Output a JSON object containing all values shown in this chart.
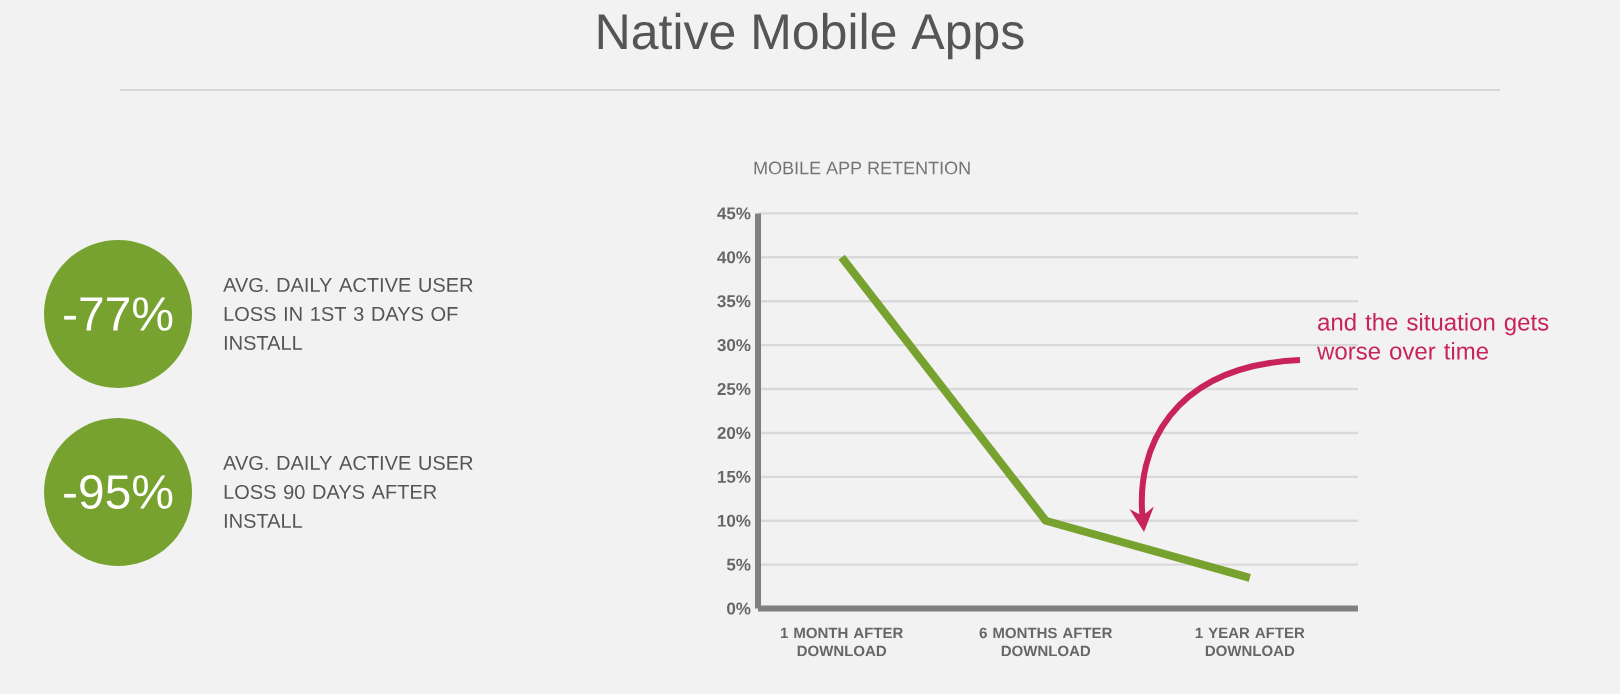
{
  "chart_data": {
    "type": "line",
    "title": "Native Mobile Apps",
    "subtitle": "MOBILE APP RETENTION",
    "categories": [
      "1 MONTH AFTER DOWNLOAD",
      "6 MONTHS AFTER DOWNLOAD",
      "1 YEAR AFTER DOWNLOAD"
    ],
    "values": [
      40,
      10,
      3.5
    ],
    "color": "#77a22f",
    "ylim": [
      0,
      45
    ],
    "yticks": [
      {
        "value": 0,
        "label": "0%"
      },
      {
        "value": 5,
        "label": "5%"
      },
      {
        "value": 10,
        "label": "10%"
      },
      {
        "value": 15,
        "label": "15%"
      },
      {
        "value": 20,
        "label": "20%"
      },
      {
        "value": 25,
        "label": "25%"
      },
      {
        "value": 30,
        "label": "30%"
      },
      {
        "value": 35,
        "label": "35%"
      },
      {
        "value": 40,
        "label": "40%"
      },
      {
        "value": 45,
        "label": "45%"
      }
    ],
    "grid": "y",
    "marker": "none",
    "line_style": "solid",
    "annotations": [
      "-77%",
      "AVG. DAILY ACTIVE USER LOSS IN 1ST 3 DAYS OF INSTALL",
      "-95%",
      "AVG. DAILY ACTIVE USER LOSS 90 DAYS AFTER INSTALL",
      "and the situation gets worse over time"
    ]
  }
}
